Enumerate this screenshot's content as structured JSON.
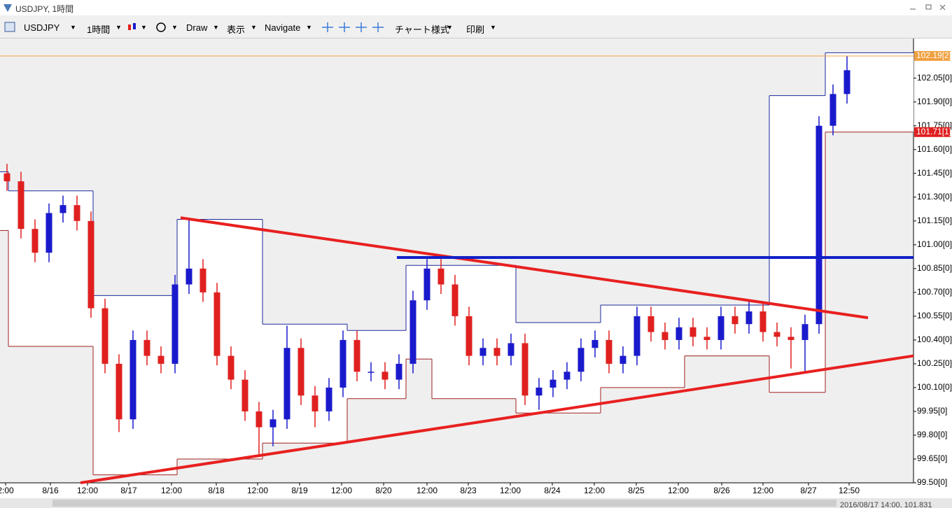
{
  "window": {
    "title": "USDJPY, 1時間"
  },
  "toolbar": {
    "symbol": "USDJPY",
    "timeframe": "1時間",
    "draw": "Draw",
    "view": "表示",
    "navigate": "Navigate",
    "chart_style": "チャート様式",
    "print": "印刷"
  },
  "status": "2016/08/17 14:00, 101.831",
  "chart_data": {
    "type": "candlestick",
    "x": [
      2,
      6,
      10,
      14,
      18,
      22,
      26,
      30,
      34,
      38,
      42,
      46,
      50,
      54,
      58,
      62,
      66,
      70,
      74,
      78,
      82,
      86,
      90,
      94,
      98,
      102,
      106,
      110,
      114,
      118,
      122,
      126,
      130,
      134,
      138,
      142,
      146,
      150,
      154,
      158,
      162,
      166,
      170,
      174,
      178,
      182,
      186,
      190,
      194,
      198,
      202,
      206,
      210,
      214,
      218,
      222,
      226,
      230,
      234,
      238,
      242
    ],
    "open": [
      101.45,
      101.4,
      101.1,
      100.95,
      101.2,
      101.25,
      101.15,
      100.6,
      100.25,
      99.9,
      100.4,
      100.3,
      100.25,
      100.75,
      100.85,
      100.7,
      100.3,
      100.15,
      99.95,
      99.85,
      99.9,
      100.35,
      100.05,
      99.95,
      100.1,
      100.4,
      100.2,
      100.2,
      100.15,
      100.25,
      100.65,
      100.85,
      100.75,
      100.55,
      100.3,
      100.35,
      100.3,
      100.38,
      100.05,
      100.1,
      100.15,
      100.2,
      100.35,
      100.4,
      100.25,
      100.3,
      100.55,
      100.45,
      100.4,
      100.48,
      100.42,
      100.4,
      100.55,
      100.5,
      100.58,
      100.45,
      100.42,
      100.4,
      100.5,
      101.75,
      101.95
    ],
    "high": [
      101.51,
      101.46,
      101.16,
      101.26,
      101.31,
      101.31,
      101.21,
      100.66,
      100.31,
      100.46,
      100.46,
      100.36,
      100.81,
      101.17,
      100.91,
      100.76,
      100.36,
      100.21,
      100.01,
      99.96,
      100.49,
      100.41,
      100.11,
      100.16,
      100.46,
      100.46,
      100.26,
      100.26,
      100.31,
      100.71,
      100.91,
      100.91,
      100.81,
      100.61,
      100.41,
      100.41,
      100.44,
      100.44,
      100.16,
      100.21,
      100.26,
      100.41,
      100.46,
      100.46,
      100.36,
      100.61,
      100.61,
      100.51,
      100.54,
      100.54,
      100.48,
      100.61,
      100.61,
      100.64,
      100.64,
      100.51,
      100.48,
      100.56,
      101.81,
      102.01,
      102.19
    ],
    "low": [
      101.34,
      101.04,
      100.89,
      100.89,
      101.14,
      101.09,
      100.54,
      100.19,
      99.82,
      99.84,
      100.24,
      100.19,
      100.19,
      100.69,
      100.64,
      100.24,
      100.09,
      99.89,
      99.68,
      99.73,
      99.84,
      99.99,
      99.85,
      99.89,
      100.04,
      100.14,
      100.14,
      100.09,
      100.09,
      100.19,
      100.59,
      100.69,
      100.49,
      100.24,
      100.24,
      100.24,
      100.24,
      99.99,
      99.96,
      100.04,
      100.09,
      100.14,
      100.29,
      100.19,
      100.19,
      100.24,
      100.39,
      100.34,
      100.34,
      100.36,
      100.34,
      100.34,
      100.44,
      100.44,
      100.39,
      100.36,
      100.22,
      100.2,
      100.44,
      101.69,
      101.89
    ],
    "close": [
      101.4,
      101.1,
      100.95,
      101.2,
      101.25,
      101.15,
      100.6,
      100.25,
      99.9,
      100.4,
      100.3,
      100.25,
      100.75,
      100.85,
      100.7,
      100.3,
      100.15,
      99.95,
      99.85,
      99.9,
      100.35,
      100.05,
      99.95,
      100.1,
      100.4,
      100.2,
      100.2,
      100.15,
      100.25,
      100.65,
      100.85,
      100.75,
      100.55,
      100.3,
      100.35,
      100.3,
      100.38,
      100.05,
      100.1,
      100.15,
      100.2,
      100.35,
      100.4,
      100.25,
      100.3,
      100.55,
      100.45,
      100.4,
      100.48,
      100.42,
      100.4,
      100.55,
      100.5,
      100.58,
      100.45,
      100.42,
      100.4,
      100.5,
      101.75,
      101.95,
      102.1
    ],
    "up_color": "#1a1acc",
    "down_color": "#e02020",
    "xlim": [
      0,
      261
    ],
    "ylim": [
      99.5,
      102.3
    ],
    "yticks": [
      {
        "value": 99.5,
        "label": "99.50[0]"
      },
      {
        "value": 99.65,
        "label": "99.65[0]"
      },
      {
        "value": 99.8,
        "label": "99.80[0]"
      },
      {
        "value": 99.95,
        "label": "99.95[0]"
      },
      {
        "value": 100.1,
        "label": "100.10[0]"
      },
      {
        "value": 100.25,
        "label": "100.25[0]"
      },
      {
        "value": 100.4,
        "label": "100.40[0]"
      },
      {
        "value": 100.55,
        "label": "100.55[0]"
      },
      {
        "value": 100.7,
        "label": "100.70[0]"
      },
      {
        "value": 100.85,
        "label": "100.85[0]"
      },
      {
        "value": 101.0,
        "label": "101.00[0]"
      },
      {
        "value": 101.15,
        "label": "101.15[0]"
      },
      {
        "value": 101.3,
        "label": "101.30[0]"
      },
      {
        "value": 101.45,
        "label": "101.45[0]"
      },
      {
        "value": 101.6,
        "label": "101.60[0]"
      },
      {
        "value": 101.75,
        "label": "101.75[0]"
      },
      {
        "value": 101.9,
        "label": "101.90[0]"
      },
      {
        "value": 102.05,
        "label": "102.05[0]"
      }
    ],
    "xticks": [
      {
        "value": 1.6,
        "label": "2:00"
      },
      {
        "value": 14.4,
        "label": "8/16"
      },
      {
        "value": 25,
        "label": "12:00"
      },
      {
        "value": 36.8,
        "label": "8/17"
      },
      {
        "value": 49,
        "label": "12:00"
      },
      {
        "value": 61.8,
        "label": "8/18"
      },
      {
        "value": 73.6,
        "label": "12:00"
      },
      {
        "value": 85.6,
        "label": "8/19"
      },
      {
        "value": 97.6,
        "label": "12:00"
      },
      {
        "value": 109.6,
        "label": "8/20"
      },
      {
        "value": 122,
        "label": "12:00"
      },
      {
        "value": 133.8,
        "label": "8/23"
      },
      {
        "value": 145.8,
        "label": "12:00"
      },
      {
        "value": 157.8,
        "label": "8/24"
      },
      {
        "value": 169.8,
        "label": "12:00"
      },
      {
        "value": 181.8,
        "label": "8/25"
      },
      {
        "value": 193.8,
        "label": "12:00"
      },
      {
        "value": 206.2,
        "label": "8/26"
      },
      {
        "value": 218,
        "label": "12:00"
      },
      {
        "value": 231,
        "label": "8/27"
      },
      {
        "value": 242.6,
        "label": "12:50"
      }
    ],
    "daily_ranges": {
      "x_start": [
        0,
        2.4,
        26.6,
        50.6,
        75,
        99.2,
        116,
        123.4,
        147.4,
        171.6,
        195.6,
        219.8,
        235.8
      ],
      "x_end": [
        2.4,
        26.6,
        50.6,
        75,
        99.2,
        116,
        123.4,
        147.4,
        171.6,
        195.6,
        219.8,
        235.8,
        261
      ],
      "high": [
        101.46,
        101.34,
        100.68,
        101.16,
        100.5,
        100.46,
        100.87,
        100.87,
        100.51,
        100.62,
        100.62,
        101.94,
        102.21
      ],
      "low": [
        101.09,
        100.36,
        99.55,
        99.65,
        99.75,
        100.03,
        100.28,
        100.03,
        99.94,
        100.1,
        100.3,
        100.07,
        101.71
      ],
      "high_color": "#1a2a9a",
      "low_color": "#a02020"
    },
    "lines": [
      {
        "x": [
          51.6,
          248
        ],
        "y": [
          101.17,
          100.54
        ],
        "color": "#e82020",
        "width": 4
      },
      {
        "x": [
          23,
          261
        ],
        "y": [
          99.5,
          100.3
        ],
        "color": "#e82020",
        "width": 4
      },
      {
        "x": [
          113.4,
          261
        ],
        "y": [
          100.92,
          100.92
        ],
        "color": "#1020c8",
        "width": 4
      },
      {
        "x": [
          0,
          261
        ],
        "y": [
          102.19,
          102.19
        ],
        "color": "#f0a040",
        "width": 1
      }
    ],
    "price_tags": [
      {
        "value": 102.19,
        "label": "102.19[2]",
        "color": "#f0a040"
      },
      {
        "value": 101.71,
        "label": "101.71[1]",
        "color": "#e02020"
      }
    ]
  }
}
